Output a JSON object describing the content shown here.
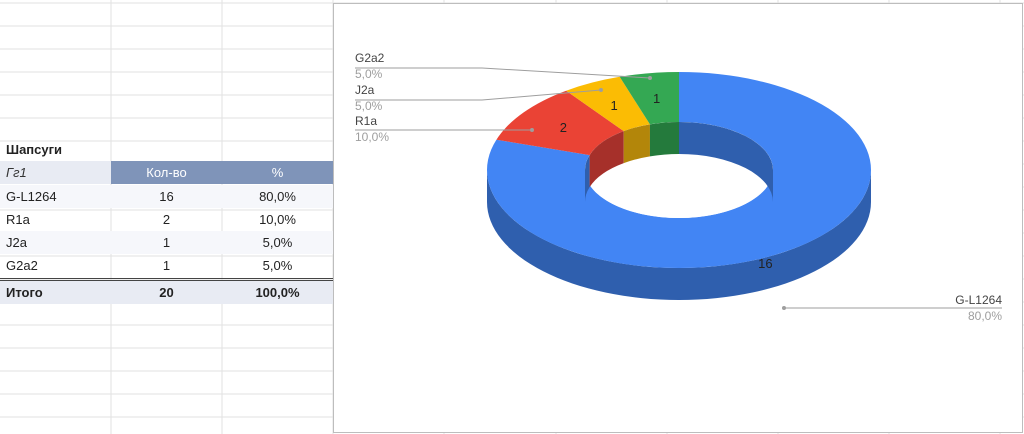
{
  "table": {
    "title": "Шапсуги",
    "header": [
      "Гг1",
      "Кол-во",
      "%"
    ],
    "rows": [
      [
        "G-L1264",
        "16",
        "80,0%"
      ],
      [
        "R1a",
        "2",
        "10,0%"
      ],
      [
        "J2a",
        "1",
        "5,0%"
      ],
      [
        "G2a2",
        "1",
        "5,0%"
      ]
    ],
    "total": [
      "Итого",
      "20",
      "100,0%"
    ]
  },
  "chart_data": {
    "type": "pie",
    "variant": "donut-3d",
    "categories": [
      "G-L1264",
      "R1a",
      "J2a",
      "G2a2"
    ],
    "values": [
      16,
      2,
      1,
      1
    ],
    "value_labels": [
      "16",
      "2",
      "1",
      "1"
    ],
    "percent_labels": [
      "80,0%",
      "10,0%",
      "5,0%",
      "5,0%"
    ],
    "colors": [
      "#4285f4",
      "#ea4335",
      "#fbbc04",
      "#34a853"
    ],
    "side_colors": [
      "#2f5fae",
      "#a6302a",
      "#b3860a",
      "#247a3c"
    ],
    "legend": "none"
  }
}
